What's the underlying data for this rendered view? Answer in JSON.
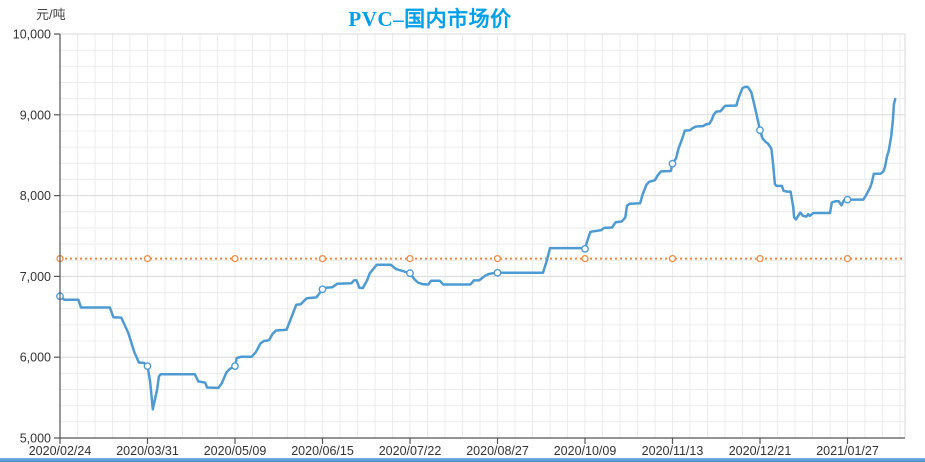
{
  "chart_data": {
    "type": "line",
    "title": "PVC–国内市场价",
    "y_unit": "元/吨",
    "legend": "none",
    "grid": "on",
    "y_axis": {
      "min": 5000,
      "max": 10000,
      "major_step": 1000,
      "minor_step": 200,
      "tick_labels": [
        "5,000",
        "6,000",
        "7,000",
        "8,000",
        "9,000",
        "10,000"
      ]
    },
    "x_axis": {
      "tick_labels": [
        "2020/02/24",
        "2020/03/31",
        "2020/05/09",
        "2020/06/15",
        "2020/07/22",
        "2020/08/27",
        "2020/10/09",
        "2020/11/13",
        "2020/12/21",
        "2021/01/27"
      ],
      "minor_divisions_per_tick": 5
    },
    "reference_line": {
      "value": 7220,
      "style": "dotted",
      "color": "#ed8b45",
      "markers_at_ticks": true
    },
    "series": {
      "color": "#4f9bd1",
      "tick_values": [
        6755,
        5890,
        5890,
        6840,
        7040,
        7045,
        7340,
        8395,
        8810,
        7950
      ],
      "points": [
        [
          0,
          6755
        ],
        [
          0.05,
          6710
        ],
        [
          0.21,
          6710
        ],
        [
          0.24,
          6615
        ],
        [
          0.57,
          6615
        ],
        [
          0.61,
          6495
        ],
        [
          0.7,
          6490
        ],
        [
          0.78,
          6300
        ],
        [
          0.85,
          6060
        ],
        [
          0.88,
          5990
        ],
        [
          0.9,
          5935
        ],
        [
          0.96,
          5930
        ],
        [
          1,
          5890
        ],
        [
          1.03,
          5700
        ],
        [
          1.06,
          5355
        ],
        [
          1.11,
          5600
        ],
        [
          1.13,
          5760
        ],
        [
          1.15,
          5790
        ],
        [
          1.54,
          5790
        ],
        [
          1.58,
          5700
        ],
        [
          1.66,
          5685
        ],
        [
          1.68,
          5625
        ],
        [
          1.81,
          5620
        ],
        [
          1.85,
          5680
        ],
        [
          1.9,
          5810
        ],
        [
          1.94,
          5855
        ],
        [
          2,
          5890
        ],
        [
          2.02,
          5990
        ],
        [
          2.07,
          6005
        ],
        [
          2.19,
          6005
        ],
        [
          2.24,
          6065
        ],
        [
          2.29,
          6170
        ],
        [
          2.33,
          6200
        ],
        [
          2.39,
          6210
        ],
        [
          2.43,
          6290
        ],
        [
          2.47,
          6330
        ],
        [
          2.59,
          6340
        ],
        [
          2.65,
          6510
        ],
        [
          2.7,
          6650
        ],
        [
          2.75,
          6655
        ],
        [
          2.82,
          6730
        ],
        [
          2.93,
          6740
        ],
        [
          3,
          6840
        ],
        [
          3.04,
          6860
        ],
        [
          3.11,
          6865
        ],
        [
          3.17,
          6910
        ],
        [
          3.33,
          6915
        ],
        [
          3.36,
          6950
        ],
        [
          3.39,
          6950
        ],
        [
          3.42,
          6860
        ],
        [
          3.46,
          6855
        ],
        [
          3.51,
          6950
        ],
        [
          3.54,
          7040
        ],
        [
          3.62,
          7145
        ],
        [
          3.78,
          7145
        ],
        [
          3.84,
          7090
        ],
        [
          4,
          7040
        ],
        [
          4.05,
          6965
        ],
        [
          4.09,
          6925
        ],
        [
          4.14,
          6905
        ],
        [
          4.21,
          6900
        ],
        [
          4.24,
          6945
        ],
        [
          4.34,
          6945
        ],
        [
          4.38,
          6900
        ],
        [
          4.69,
          6900
        ],
        [
          4.73,
          6950
        ],
        [
          4.79,
          6950
        ],
        [
          4.86,
          7010
        ],
        [
          4.9,
          7030
        ],
        [
          4.95,
          7040
        ],
        [
          5,
          7045
        ],
        [
          5.52,
          7045
        ],
        [
          5.57,
          7220
        ],
        [
          5.6,
          7350
        ],
        [
          5.98,
          7350
        ],
        [
          6,
          7340
        ],
        [
          6.02,
          7420
        ],
        [
          6.06,
          7550
        ],
        [
          6.1,
          7560
        ],
        [
          6.18,
          7570
        ],
        [
          6.22,
          7600
        ],
        [
          6.31,
          7605
        ],
        [
          6.35,
          7670
        ],
        [
          6.42,
          7680
        ],
        [
          6.46,
          7730
        ],
        [
          6.48,
          7875
        ],
        [
          6.51,
          7900
        ],
        [
          6.63,
          7905
        ],
        [
          6.66,
          8020
        ],
        [
          6.7,
          8130
        ],
        [
          6.73,
          8170
        ],
        [
          6.8,
          8190
        ],
        [
          6.83,
          8250
        ],
        [
          6.87,
          8300
        ],
        [
          6.98,
          8305
        ],
        [
          7,
          8395
        ],
        [
          7.04,
          8460
        ],
        [
          7.07,
          8585
        ],
        [
          7.11,
          8700
        ],
        [
          7.14,
          8805
        ],
        [
          7.2,
          8810
        ],
        [
          7.23,
          8835
        ],
        [
          7.27,
          8855
        ],
        [
          7.35,
          8860
        ],
        [
          7.38,
          8880
        ],
        [
          7.42,
          8890
        ],
        [
          7.45,
          8940
        ],
        [
          7.47,
          9000
        ],
        [
          7.5,
          9040
        ],
        [
          7.55,
          9045
        ],
        [
          7.58,
          9085
        ],
        [
          7.6,
          9110
        ],
        [
          7.73,
          9115
        ],
        [
          7.75,
          9190
        ],
        [
          7.78,
          9280
        ],
        [
          7.8,
          9330
        ],
        [
          7.83,
          9345
        ],
        [
          7.86,
          9345
        ],
        [
          7.9,
          9280
        ],
        [
          7.94,
          9100
        ],
        [
          8,
          8810
        ],
        [
          8.03,
          8705
        ],
        [
          8.07,
          8660
        ],
        [
          8.09,
          8645
        ],
        [
          8.13,
          8580
        ],
        [
          8.15,
          8390
        ],
        [
          8.17,
          8140
        ],
        [
          8.19,
          8120
        ],
        [
          8.25,
          8120
        ],
        [
          8.27,
          8060
        ],
        [
          8.31,
          8050
        ],
        [
          8.35,
          8050
        ],
        [
          8.38,
          7850
        ],
        [
          8.39,
          7730
        ],
        [
          8.41,
          7705
        ],
        [
          8.46,
          7790
        ],
        [
          8.49,
          7750
        ],
        [
          8.53,
          7740
        ],
        [
          8.55,
          7770
        ],
        [
          8.57,
          7750
        ],
        [
          8.61,
          7785
        ],
        [
          8.8,
          7785
        ],
        [
          8.82,
          7915
        ],
        [
          8.86,
          7930
        ],
        [
          8.9,
          7930
        ],
        [
          8.93,
          7880
        ],
        [
          8.96,
          7945
        ],
        [
          9,
          7950
        ],
        [
          9.18,
          7950
        ],
        [
          9.21,
          8000
        ],
        [
          9.26,
          8105
        ],
        [
          9.28,
          8170
        ],
        [
          9.3,
          8270
        ],
        [
          9.38,
          8272
        ],
        [
          9.41,
          8300
        ],
        [
          9.43,
          8360
        ],
        [
          9.45,
          8480
        ],
        [
          9.47,
          8550
        ],
        [
          9.5,
          8740
        ],
        [
          9.52,
          8950
        ],
        [
          9.53,
          9130
        ],
        [
          9.545,
          9195
        ]
      ]
    },
    "colors": {
      "title": "#00a0e9",
      "axis": "#555555",
      "label": "#333333",
      "grid_major": "#d8d8d8",
      "grid_minor": "#ececec",
      "background": "#ffffff",
      "bottom_bar": "#4a8bc9"
    }
  }
}
